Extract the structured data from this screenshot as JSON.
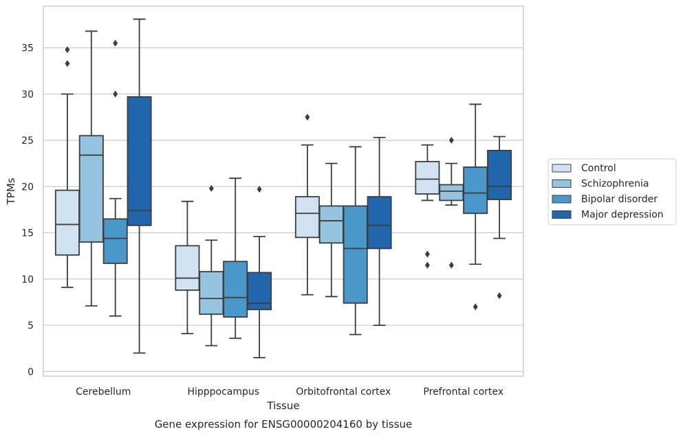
{
  "chart_data": {
    "type": "box",
    "xlabel": "Tissue",
    "ylabel": "TPMs",
    "caption": "Gene expression for ENSG00000204160 by tissue",
    "ylim": [
      -0.5,
      39.5
    ],
    "yticks": [
      0,
      5,
      10,
      15,
      20,
      25,
      30,
      35
    ],
    "grid": "horizontal",
    "legend_position": "right",
    "categories": [
      "Cerebellum",
      "Hipppocampus",
      "Orbitofrontal cortex",
      "Prefrontal cortex"
    ],
    "series": [
      {
        "name": "Control",
        "color": "#d0e1f2",
        "boxes": [
          {
            "whisker_low": 9.1,
            "q1": 12.6,
            "median": 15.9,
            "q3": 19.6,
            "whisker_high": 30.0,
            "outliers": [
              33.3,
              34.8
            ]
          },
          {
            "whisker_low": 4.1,
            "q1": 8.8,
            "median": 10.1,
            "q3": 13.6,
            "whisker_high": 18.4,
            "outliers": []
          },
          {
            "whisker_low": 8.3,
            "q1": 14.5,
            "median": 17.1,
            "q3": 18.9,
            "whisker_high": 24.5,
            "outliers": [
              27.5
            ]
          },
          {
            "whisker_low": 18.5,
            "q1": 19.2,
            "median": 20.8,
            "q3": 22.7,
            "whisker_high": 24.5,
            "outliers": [
              11.5,
              12.7
            ]
          }
        ]
      },
      {
        "name": "Schizophrenia",
        "color": "#94c4df",
        "boxes": [
          {
            "whisker_low": 7.1,
            "q1": 14.0,
            "median": 23.4,
            "q3": 25.5,
            "whisker_high": 36.8,
            "outliers": []
          },
          {
            "whisker_low": 2.8,
            "q1": 6.2,
            "median": 7.9,
            "q3": 10.8,
            "whisker_high": 14.2,
            "outliers": [
              19.8
            ]
          },
          {
            "whisker_low": 8.1,
            "q1": 13.9,
            "median": 16.3,
            "q3": 17.9,
            "whisker_high": 22.5,
            "outliers": []
          },
          {
            "whisker_low": 18.0,
            "q1": 18.5,
            "median": 19.5,
            "q3": 20.2,
            "whisker_high": 22.5,
            "outliers": [
              11.5,
              25.0
            ]
          }
        ]
      },
      {
        "name": "Bipolar disorder",
        "color": "#4a98c9",
        "boxes": [
          {
            "whisker_low": 6.0,
            "q1": 11.7,
            "median": 14.4,
            "q3": 16.5,
            "whisker_high": 18.7,
            "outliers": [
              30.0,
              35.5
            ]
          },
          {
            "whisker_low": 3.6,
            "q1": 5.9,
            "median": 8.0,
            "q3": 11.9,
            "whisker_high": 20.9,
            "outliers": []
          },
          {
            "whisker_low": 4.0,
            "q1": 7.4,
            "median": 13.3,
            "q3": 17.9,
            "whisker_high": 24.3,
            "outliers": []
          },
          {
            "whisker_low": 11.6,
            "q1": 17.1,
            "median": 19.3,
            "q3": 22.1,
            "whisker_high": 28.9,
            "outliers": [
              7.0
            ]
          }
        ]
      },
      {
        "name": "Major depression",
        "color": "#2166ac",
        "boxes": [
          {
            "whisker_low": 2.0,
            "q1": 15.8,
            "median": 17.4,
            "q3": 29.7,
            "whisker_high": 38.1,
            "outliers": []
          },
          {
            "whisker_low": 1.5,
            "q1": 6.7,
            "median": 7.4,
            "q3": 10.7,
            "whisker_high": 14.6,
            "outliers": [
              19.7
            ]
          },
          {
            "whisker_low": 5.0,
            "q1": 13.3,
            "median": 15.8,
            "q3": 18.9,
            "whisker_high": 25.3,
            "outliers": []
          },
          {
            "whisker_low": 14.4,
            "q1": 18.6,
            "median": 20.0,
            "q3": 23.9,
            "whisker_high": 25.4,
            "outliers": [
              8.2
            ]
          }
        ]
      }
    ]
  }
}
